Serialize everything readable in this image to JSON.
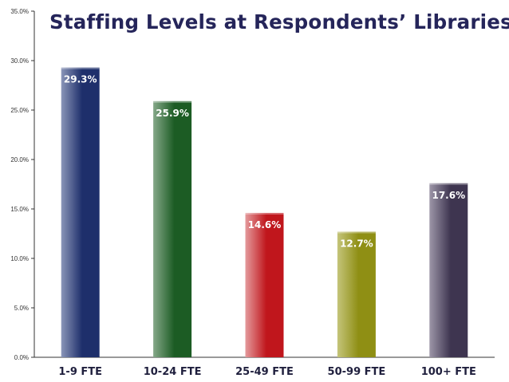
{
  "chart_data": {
    "type": "bar",
    "title": "Staffing Levels at Respondents’ Libraries",
    "categories": [
      "1-9 FTE",
      "10-24 FTE",
      "25-49 FTE",
      "50-99 FTE",
      "100+ FTE"
    ],
    "values": [
      29.3,
      25.9,
      14.6,
      12.7,
      17.6
    ],
    "data_labels": [
      "29.3%",
      "25.9%",
      "14.6%",
      "12.7%",
      "17.6%"
    ],
    "ylim": [
      0,
      35
    ],
    "yticks": [
      "0.0%",
      "5.0%",
      "10.0%",
      "15.0%",
      "20.0%",
      "25.0%",
      "30.0%",
      "35.0%"
    ],
    "grid": false,
    "legend": "none",
    "bar_colors": [
      "#1e2f6b",
      "#1c5c24",
      "#c0161c",
      "#8f8f14",
      "#3e3550"
    ],
    "bar_light_colors": [
      "#8a95b8",
      "#86a889",
      "#e49a9c",
      "#c4c47a",
      "#9d96a8"
    ]
  }
}
